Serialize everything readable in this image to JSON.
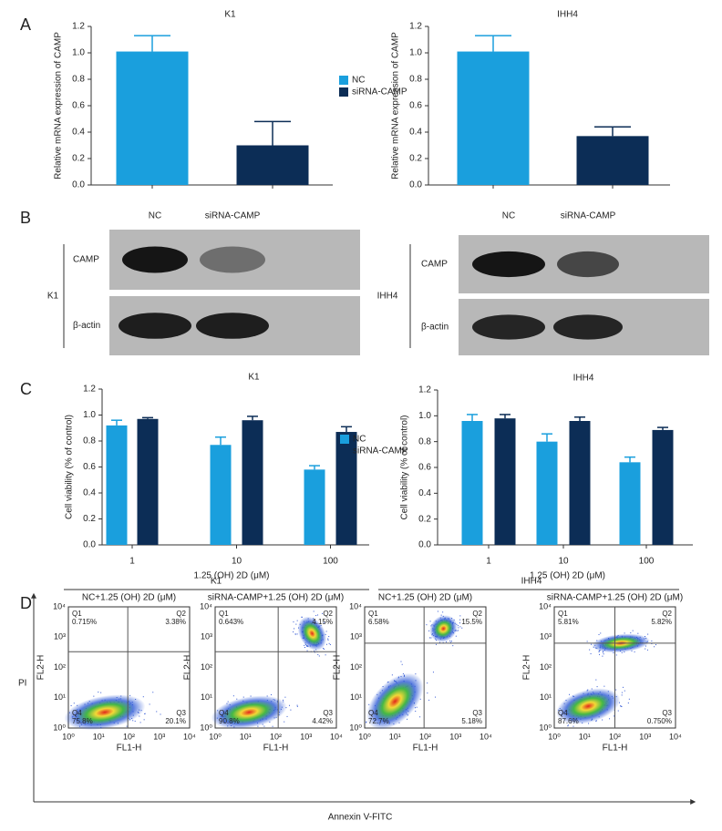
{
  "panel_labels": [
    "A",
    "B",
    "C",
    "D"
  ],
  "chart_data": [
    {
      "type": "bar",
      "title": "K1",
      "ylabel": "Relative mRNA expression of CAMP",
      "categories": [
        null
      ],
      "series": [
        {
          "name": "NC",
          "color": "#1a9fdd",
          "values": [
            1.01
          ],
          "errors": [
            0.12
          ]
        },
        {
          "name": "siRNA-CAMP",
          "color": "#0c2d56",
          "values": [
            0.3
          ],
          "errors": [
            0.18
          ]
        }
      ],
      "ylim": [
        0,
        1.2
      ],
      "yticks": [
        {
          "value": 0,
          "label": "0.0"
        },
        0.2,
        0.4,
        0.6,
        0.8,
        {
          "value": 1,
          "label": "1.0"
        },
        1.2
      ],
      "legend": "right"
    },
    {
      "type": "bar",
      "title": "IHH4",
      "ylabel": "Relative mRNA expression of CAMP",
      "categories": [
        null
      ],
      "series": [
        {
          "color": "#1a9fdd",
          "values": [
            1.01
          ],
          "errors": [
            0.12
          ]
        },
        {
          "color": "#0c2d56",
          "values": [
            0.37
          ],
          "errors": [
            0.07
          ]
        }
      ],
      "ylim": [
        0,
        1.2
      ],
      "yticks": [
        {
          "value": 0,
          "label": "0.0"
        },
        0.2,
        0.4,
        0.6,
        0.8,
        {
          "value": 1,
          "label": "1.0"
        },
        1.2
      ]
    },
    {
      "type": "bar",
      "title": "K1",
      "ylabel": "Cell viability (% of control)",
      "xlabel": "1.25 (OH) 2D (μM)",
      "categories": [
        "1",
        "10",
        "100"
      ],
      "series": [
        {
          "name": "NC",
          "color": "#1a9fdd",
          "values": [
            0.92,
            0.77,
            0.58
          ],
          "errors": [
            0.04,
            0.06,
            0.03
          ]
        },
        {
          "name": "siRNA-CAMP",
          "color": "#0c2d56",
          "values": [
            0.97,
            0.96,
            0.87
          ],
          "errors": [
            0.01,
            0.03,
            0.04
          ]
        }
      ],
      "ylim": [
        0,
        1.2
      ],
      "yticks": [
        {
          "value": 0,
          "label": "0.0"
        },
        0.2,
        0.4,
        0.6,
        0.8,
        {
          "value": 1,
          "label": "1.0"
        },
        1.2
      ],
      "legend": "right"
    },
    {
      "type": "bar",
      "title": "IHH4",
      "ylabel": "Cell viability (% of control)",
      "xlabel": "1.25 (OH) 2D (μM)",
      "categories": [
        "1",
        "10",
        "100"
      ],
      "series": [
        {
          "color": "#1a9fdd",
          "values": [
            0.96,
            0.8,
            0.64
          ],
          "errors": [
            0.05,
            0.06,
            0.04
          ]
        },
        {
          "color": "#0c2d56",
          "values": [
            0.98,
            0.96,
            0.89
          ],
          "errors": [
            0.03,
            0.03,
            0.02
          ]
        }
      ],
      "ylim": [
        0,
        1.2
      ],
      "yticks": [
        {
          "value": 0,
          "label": "0.0"
        },
        0.2,
        0.4,
        0.6,
        0.8,
        {
          "value": 1,
          "label": "1.0"
        },
        1.2
      ]
    }
  ],
  "western_blot": [
    {
      "cell_line": "K1",
      "lanes": [
        "NC",
        "siRNA-CAMP"
      ],
      "rows": [
        "CAMP",
        "β-actin"
      ]
    },
    {
      "cell_line": "IHH4",
      "lanes": [
        "NC",
        "siRNA-CAMP"
      ],
      "rows": [
        "CAMP",
        "β-actin"
      ]
    }
  ],
  "flow_cytometry": {
    "groups": [
      "K1",
      "IHH4"
    ],
    "y_axis": "PI",
    "x_axis": "Annexin V-FITC",
    "axis_ticks": [
      "10⁰",
      "10¹",
      "10²",
      "10³",
      "10⁴"
    ],
    "plots": [
      {
        "title": "NC+1.25 (OH) 2D (μM)",
        "ylabel": "FL2-H",
        "xlabel": "FL1-H",
        "quadrants": [
          {
            "name": "Q1",
            "value": "0.715%"
          },
          {
            "name": "Q2",
            "value": "3.38%"
          },
          {
            "name": "Q3",
            "value": "20.1%"
          },
          {
            "name": "Q4",
            "value": "75.8%"
          }
        ]
      },
      {
        "title": "siRNA-CAMP+1.25 (OH) 2D (μM)",
        "ylabel": "FL2-H",
        "xlabel": "FL1-H",
        "quadrants": [
          {
            "name": "Q1",
            "value": "0.643%"
          },
          {
            "name": "Q2",
            "value": "4.15%"
          },
          {
            "name": "Q3",
            "value": "4.42%"
          },
          {
            "name": "Q4",
            "value": "90.8%"
          }
        ]
      },
      {
        "title": "NC+1.25 (OH) 2D (μM)",
        "ylabel": "FL2-H",
        "xlabel": "FL1-H",
        "quadrants": [
          {
            "name": "Q1",
            "value": "6.58%"
          },
          {
            "name": "Q2",
            "value": "15.5%"
          },
          {
            "name": "Q3",
            "value": "5.18%"
          },
          {
            "name": "Q4",
            "value": "72.7%"
          }
        ]
      },
      {
        "title": "siRNA-CAMP+1.25 (OH) 2D (μM)",
        "ylabel": "FL2-H",
        "xlabel": "FL1-H",
        "quadrants": [
          {
            "name": "Q1",
            "value": "5.81%"
          },
          {
            "name": "Q2",
            "value": "5.82%"
          },
          {
            "name": "Q3",
            "value": "0.750%"
          },
          {
            "name": "Q4",
            "value": "87.6%"
          }
        ]
      }
    ]
  }
}
